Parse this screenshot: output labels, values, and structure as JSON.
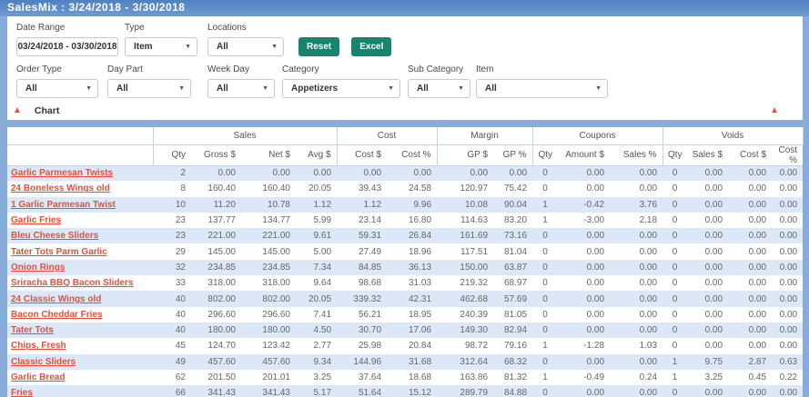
{
  "title": "SalesMix : 3/24/2018 - 3/30/2018",
  "colors": {
    "accent_blue": "#87acd9",
    "stripe_blue": "#dce8f8",
    "link_red": "#e2503a",
    "triangle_red": "#e8533b",
    "button_teal": "#17846f"
  },
  "filters": {
    "date_range": {
      "label": "Date Range",
      "value": "03/24/2018 - 03/30/2018"
    },
    "type": {
      "label": "Type",
      "value": "Item"
    },
    "locations": {
      "label": "Locations",
      "value": "All"
    },
    "reset_label": "Reset",
    "excel_label": "Excel",
    "order_type": {
      "label": "Order Type",
      "value": "All"
    },
    "day_part": {
      "label": "Day Part",
      "value": "All"
    },
    "week_day": {
      "label": "Week Day",
      "value": "All"
    },
    "category": {
      "label": "Category",
      "value": "Appetizers"
    },
    "sub_category": {
      "label": "Sub Category",
      "value": "All"
    },
    "item": {
      "label": "Item",
      "value": "All"
    }
  },
  "chart_section": {
    "label": "Chart",
    "collapse_icon": "triangle-up"
  },
  "table": {
    "groups": [
      {
        "label": "Sales",
        "span": 4
      },
      {
        "label": "Cost",
        "span": 2
      },
      {
        "label": "Margin",
        "span": 2
      },
      {
        "label": "Coupons",
        "span": 3
      },
      {
        "label": "Voids",
        "span": 4
      }
    ],
    "columns": [
      "Qty",
      "Gross $",
      "Net $",
      "Avg $",
      "Cost $",
      "Cost %",
      "GP $",
      "GP %",
      "Qty",
      "Amount $",
      "Sales %",
      "Qty",
      "Sales $",
      "Cost $",
      "Cost %"
    ],
    "centered_column_indexes": [
      8,
      11
    ],
    "rows": [
      {
        "item": "Garlic Parmesan Twists",
        "values": [
          "2",
          "0.00",
          "0.00",
          "0.00",
          "0.00",
          "0.00",
          "0.00",
          "0.00",
          "0",
          "0.00",
          "0.00",
          "0",
          "0.00",
          "0.00",
          "0.00"
        ]
      },
      {
        "item": "24 Boneless Wings old",
        "values": [
          "8",
          "160.40",
          "160.40",
          "20.05",
          "39.43",
          "24.58",
          "120.97",
          "75.42",
          "0",
          "0.00",
          "0.00",
          "0",
          "0.00",
          "0.00",
          "0.00"
        ]
      },
      {
        "item": "1 Garlic Parmesan Twist",
        "values": [
          "10",
          "11.20",
          "10.78",
          "1.12",
          "1.12",
          "9.96",
          "10.08",
          "90.04",
          "1",
          "-0.42",
          "3.76",
          "0",
          "0.00",
          "0.00",
          "0.00"
        ]
      },
      {
        "item": "Garlic Fries",
        "values": [
          "23",
          "137.77",
          "134.77",
          "5.99",
          "23.14",
          "16.80",
          "114.63",
          "83.20",
          "1",
          "-3.00",
          "2.18",
          "0",
          "0.00",
          "0.00",
          "0.00"
        ]
      },
      {
        "item": "Bleu Cheese Sliders",
        "values": [
          "23",
          "221.00",
          "221.00",
          "9.61",
          "59.31",
          "26.84",
          "161.69",
          "73.16",
          "0",
          "0.00",
          "0.00",
          "0",
          "0.00",
          "0.00",
          "0.00"
        ]
      },
      {
        "item": "Tater Tots Parm Garlic",
        "values": [
          "29",
          "145.00",
          "145.00",
          "5.00",
          "27.49",
          "18.96",
          "117.51",
          "81.04",
          "0",
          "0.00",
          "0.00",
          "0",
          "0.00",
          "0.00",
          "0.00"
        ]
      },
      {
        "item": "Onion Rings",
        "values": [
          "32",
          "234.85",
          "234.85",
          "7.34",
          "84.85",
          "36.13",
          "150.00",
          "63.87",
          "0",
          "0.00",
          "0.00",
          "0",
          "0.00",
          "0.00",
          "0.00"
        ]
      },
      {
        "item": "Sriracha BBQ Bacon Sliders",
        "values": [
          "33",
          "318.00",
          "318.00",
          "9.64",
          "98.68",
          "31.03",
          "219.32",
          "68.97",
          "0",
          "0.00",
          "0.00",
          "0",
          "0.00",
          "0.00",
          "0.00"
        ]
      },
      {
        "item": "24 Classic Wings old",
        "values": [
          "40",
          "802.00",
          "802.00",
          "20.05",
          "339.32",
          "42.31",
          "462.68",
          "57.69",
          "0",
          "0.00",
          "0.00",
          "0",
          "0.00",
          "0.00",
          "0.00"
        ]
      },
      {
        "item": "Bacon Cheddar Fries",
        "values": [
          "40",
          "296.60",
          "296.60",
          "7.41",
          "56.21",
          "18.95",
          "240.39",
          "81.05",
          "0",
          "0.00",
          "0.00",
          "0",
          "0.00",
          "0.00",
          "0.00"
        ]
      },
      {
        "item": "Tater Tots",
        "values": [
          "40",
          "180.00",
          "180.00",
          "4.50",
          "30.70",
          "17.06",
          "149.30",
          "82.94",
          "0",
          "0.00",
          "0.00",
          "0",
          "0.00",
          "0.00",
          "0.00"
        ]
      },
      {
        "item": "Chips, Fresh",
        "values": [
          "45",
          "124.70",
          "123.42",
          "2.77",
          "25.98",
          "20.84",
          "98.72",
          "79.16",
          "1",
          "-1.28",
          "1.03",
          "0",
          "0.00",
          "0.00",
          "0.00"
        ]
      },
      {
        "item": "Classic Sliders",
        "values": [
          "49",
          "457.60",
          "457.60",
          "9.34",
          "144.96",
          "31.68",
          "312.64",
          "68.32",
          "0",
          "0.00",
          "0.00",
          "1",
          "9.75",
          "2.87",
          "0.63"
        ]
      },
      {
        "item": "Garlic Bread",
        "values": [
          "62",
          "201.50",
          "201.01",
          "3.25",
          "37.64",
          "18.68",
          "163.86",
          "81.32",
          "1",
          "-0.49",
          "0.24",
          "1",
          "3.25",
          "0.45",
          "0.22"
        ]
      },
      {
        "item": "Fries",
        "values": [
          "66",
          "341.43",
          "341.43",
          "5.17",
          "51.64",
          "15.12",
          "289.79",
          "84.88",
          "0",
          "0.00",
          "0.00",
          "0",
          "0.00",
          "0.00",
          "0.00"
        ]
      }
    ]
  }
}
